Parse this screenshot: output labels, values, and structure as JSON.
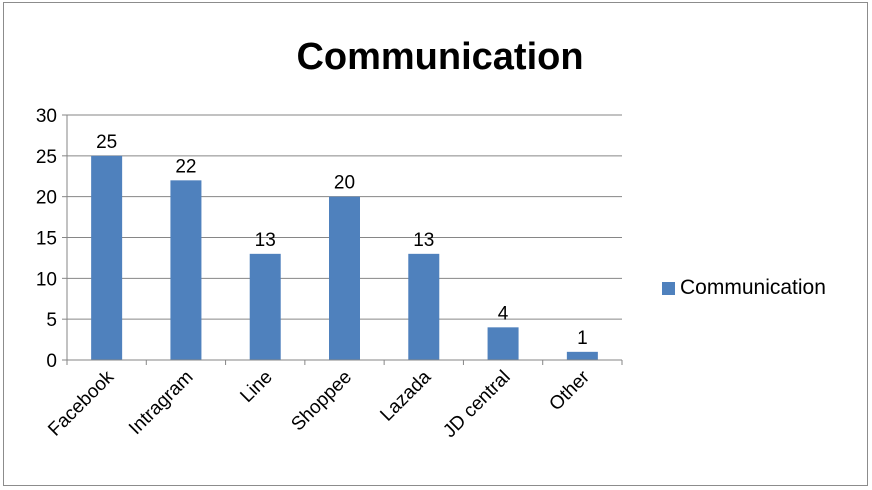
{
  "chart_data": {
    "type": "bar",
    "title": "Communication",
    "xlabel": "",
    "ylabel": "",
    "categories": [
      "Facebook",
      "Intragram",
      "Line",
      "Shoppee",
      "Lazada",
      "JD central",
      "Other"
    ],
    "series": [
      {
        "name": "Communication",
        "values": [
          25,
          22,
          13,
          20,
          13,
          4,
          1
        ],
        "color": "#4f81bd"
      }
    ],
    "ylim": [
      0,
      30
    ],
    "yticks": [
      0,
      5,
      10,
      15,
      20,
      25,
      30
    ],
    "grid": true,
    "data_labels": true,
    "legend_position": "right"
  }
}
